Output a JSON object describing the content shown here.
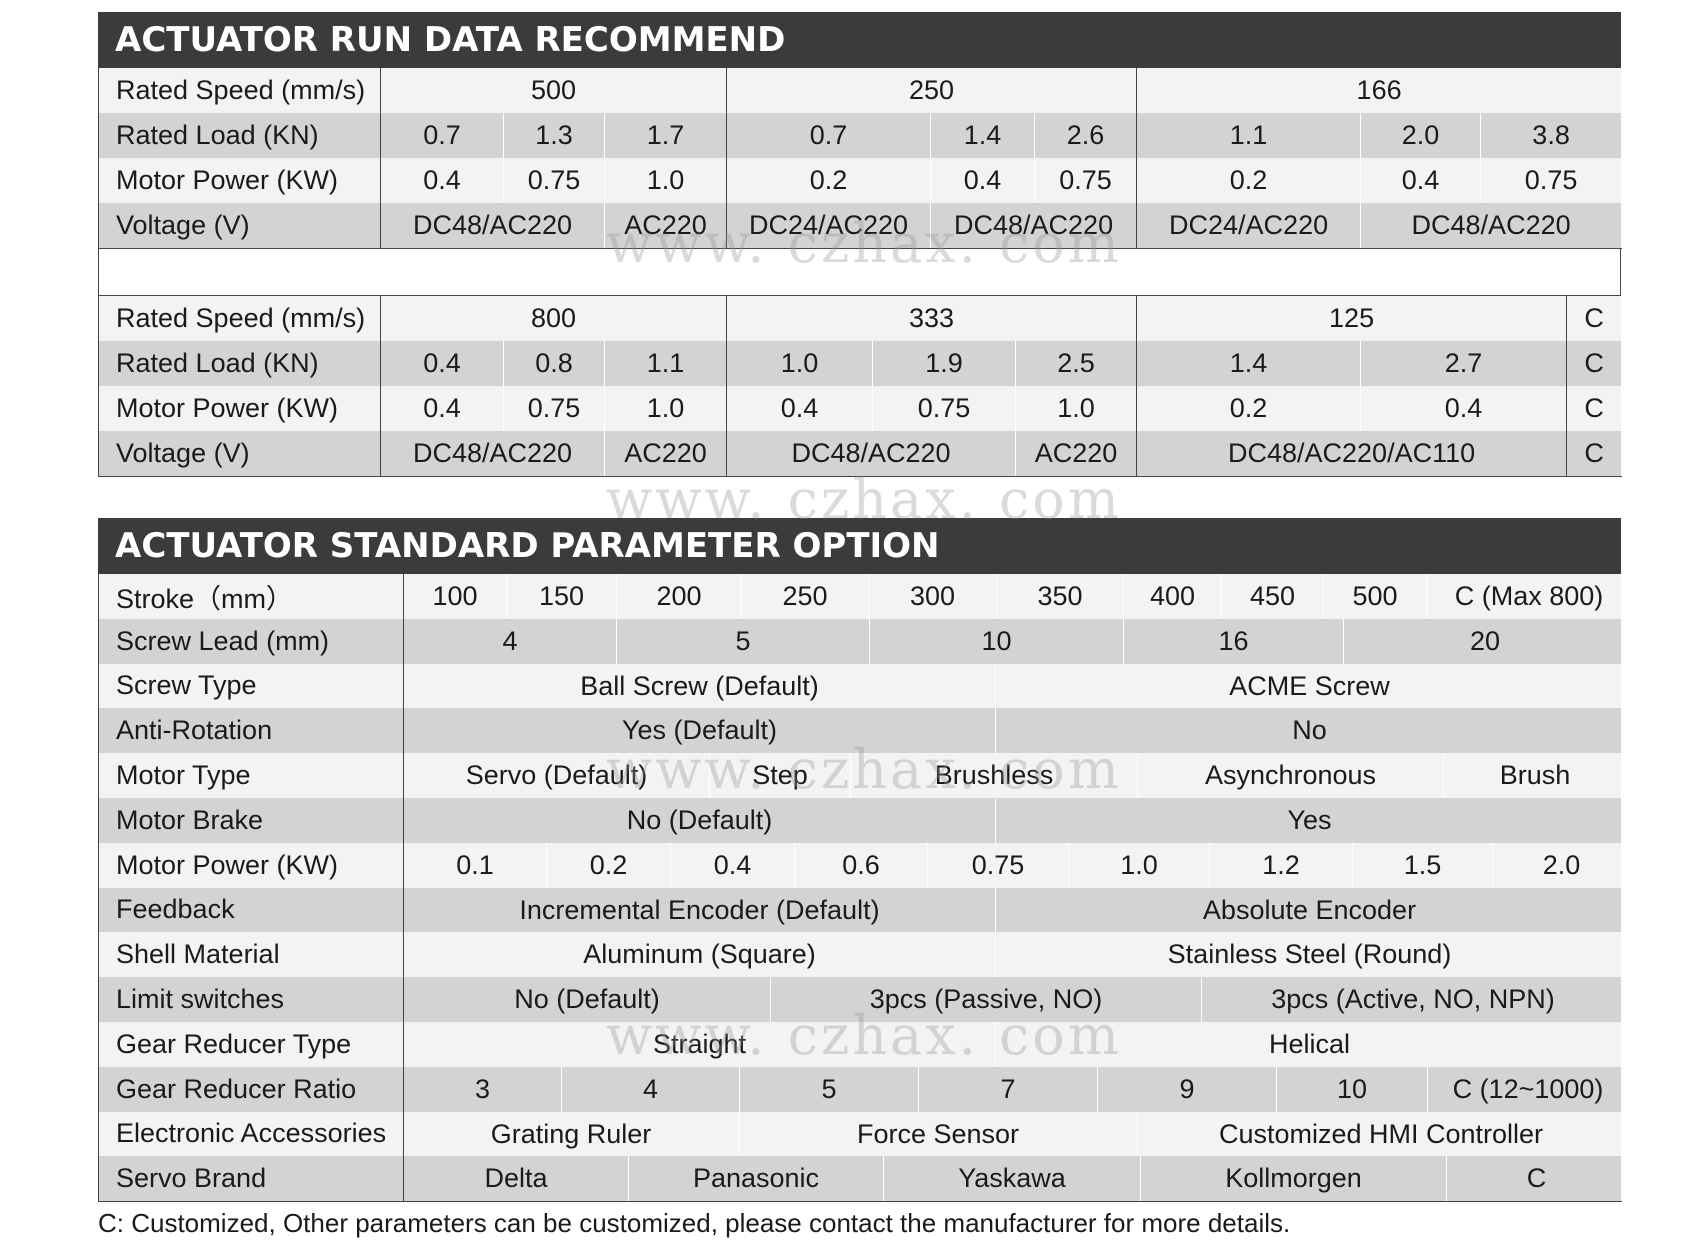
{
  "run_data": {
    "title": "ACTUATOR RUN DATA RECOMMEND",
    "labels": {
      "speed": "Rated Speed (mm/s)",
      "load": "Rated Load (KN)",
      "power": "Motor Power (KW)",
      "voltage": "Voltage (V)"
    },
    "block1": {
      "speed": [
        "500",
        "250",
        "166"
      ],
      "load": [
        "0.7",
        "1.3",
        "1.7",
        "0.7",
        "1.4",
        "2.6",
        "1.1",
        "2.0",
        "3.8"
      ],
      "power": [
        "0.4",
        "0.75",
        "1.0",
        "0.2",
        "0.4",
        "0.75",
        "0.2",
        "0.4",
        "0.75"
      ],
      "voltage": [
        "DC48/AC220",
        "AC220",
        "DC24/AC220",
        "DC48/AC220",
        "DC24/AC220",
        "DC48/AC220"
      ]
    },
    "block2": {
      "speed": [
        "800",
        "333",
        "125",
        "C"
      ],
      "load": [
        "0.4",
        "0.8",
        "1.1",
        "1.0",
        "1.9",
        "2.5",
        "1.4",
        "2.7",
        "C"
      ],
      "power": [
        "0.4",
        "0.75",
        "1.0",
        "0.4",
        "0.75",
        "1.0",
        "0.2",
        "0.4",
        "C"
      ],
      "voltage": [
        "DC48/AC220",
        "AC220",
        "DC48/AC220",
        "AC220",
        "DC48/AC220/AC110",
        "C"
      ]
    }
  },
  "params": {
    "title": "ACTUATOR STANDARD PARAMETER OPTION",
    "stroke": {
      "label": "Stroke（mm）",
      "values": [
        "100",
        "150",
        "200",
        "250",
        "300",
        "350",
        "400",
        "450",
        "500",
        "C (Max 800)"
      ]
    },
    "screw_lead": {
      "label": "Screw Lead (mm)",
      "values": [
        "4",
        "5",
        "10",
        "16",
        "20"
      ]
    },
    "screw_type": {
      "label": "Screw Type",
      "values": [
        "Ball Screw (Default)",
        "ACME Screw"
      ]
    },
    "anti_rotation": {
      "label": "Anti-Rotation",
      "values": [
        "Yes (Default)",
        "No"
      ]
    },
    "motor_type": {
      "label": "Motor Type",
      "values": [
        "Servo (Default)",
        "Step",
        "Brushless",
        "Asynchronous",
        "Brush"
      ]
    },
    "motor_brake": {
      "label": "Motor Brake",
      "values": [
        "No (Default)",
        "Yes"
      ]
    },
    "motor_power": {
      "label": "Motor Power (KW)",
      "values": [
        "0.1",
        "0.2",
        "0.4",
        "0.6",
        "0.75",
        "1.0",
        "1.2",
        "1.5",
        "2.0"
      ]
    },
    "feedback": {
      "label": "Feedback",
      "values": [
        "Incremental Encoder (Default)",
        "Absolute Encoder"
      ]
    },
    "shell": {
      "label": "Shell Material",
      "values": [
        "Aluminum (Square)",
        "Stainless Steel (Round)"
      ]
    },
    "limit": {
      "label": "Limit switches",
      "values": [
        "No (Default)",
        "3pcs (Passive, NO)",
        "3pcs (Active, NO, NPN)"
      ]
    },
    "gear_type": {
      "label": "Gear Reducer Type",
      "values": [
        "Straight",
        "Helical"
      ]
    },
    "gear_ratio": {
      "label": "Gear Reducer Ratio",
      "values": [
        "3",
        "4",
        "5",
        "7",
        "9",
        "10",
        "C (12~1000)"
      ]
    },
    "accessories": {
      "label": "Electronic Accessories",
      "values": [
        "Grating Ruler",
        "Force Sensor",
        "Customized HMI Controller"
      ]
    },
    "servo_brand": {
      "label": "Servo Brand",
      "values": [
        "Delta",
        "Panasonic",
        "Yaskawa",
        "Kollmorgen",
        "C"
      ]
    }
  },
  "footnote": "C: Customized, Other parameters can be customized, please contact the manufacturer for more details.",
  "watermark": "www. czhax. com"
}
